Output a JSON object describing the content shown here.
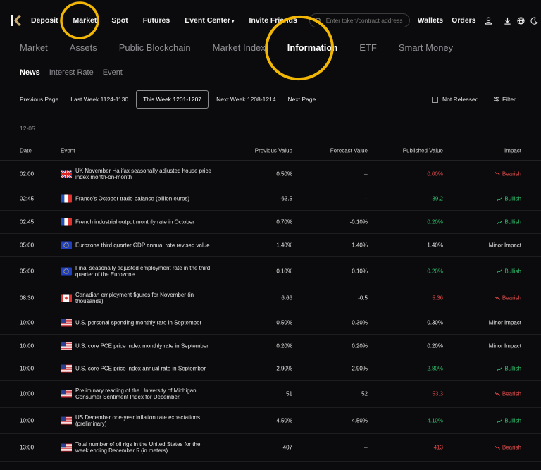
{
  "nav": {
    "items": [
      "Deposit",
      "Market",
      "Spot",
      "Futures",
      "Event Center",
      "Invite Friends"
    ],
    "event_center_caret": "▾",
    "search_placeholder": "Enter token/contract address",
    "right": [
      "Wallets",
      "Orders"
    ]
  },
  "tabs_primary": [
    "Market",
    "Assets",
    "Public Blockchain",
    "Market Index",
    "Information",
    "ETF",
    "Smart Money"
  ],
  "tabs_primary_active": "Information",
  "tabs_secondary": [
    "News",
    "Interest Rate",
    "Event"
  ],
  "tabs_secondary_active": "News",
  "weekbar": {
    "prev_page": "Previous Page",
    "last_week": "Last Week 1124-1130",
    "this_week": "This Week 1201-1207",
    "next_week": "Next Week 1208-1214",
    "next_page": "Next Page",
    "not_released": "Not Released",
    "filter": "Filter"
  },
  "date_header": "12-05",
  "table": {
    "headers": {
      "date": "Date",
      "event": "Event",
      "previous": "Previous Value",
      "forecast": "Forecast Value",
      "published": "Published Value",
      "impact": "Impact"
    },
    "rows": [
      {
        "time": "02:00",
        "flag": "uk",
        "event": "UK November Halifax seasonally adjusted house price index month-on-month",
        "previous": "0.50%",
        "forecast": "--",
        "published": "0.00%",
        "pub_color": "red",
        "impact": "Bearish",
        "impact_type": "bearish"
      },
      {
        "time": "02:45",
        "flag": "fr",
        "event": "France's October trade balance (billion euros)",
        "previous": "-63.5",
        "forecast": "--",
        "published": "-39.2",
        "pub_color": "green",
        "impact": "Bullish",
        "impact_type": "bullish"
      },
      {
        "time": "02:45",
        "flag": "fr",
        "event": "French industrial output monthly rate in October",
        "previous": "0.70%",
        "forecast": "-0.10%",
        "published": "0.20%",
        "pub_color": "green",
        "impact": "Bullish",
        "impact_type": "bullish"
      },
      {
        "time": "05:00",
        "flag": "eu",
        "event": "Eurozone third quarter GDP annual rate revised value",
        "previous": "1.40%",
        "forecast": "1.40%",
        "published": "1.40%",
        "pub_color": "neutral",
        "impact": "Minor Impact",
        "impact_type": "minor"
      },
      {
        "time": "05:00",
        "flag": "eu",
        "event": "Final seasonally adjusted employment rate in the third quarter of the Eurozone",
        "previous": "0.10%",
        "forecast": "0.10%",
        "published": "0.20%",
        "pub_color": "green",
        "impact": "Bullish",
        "impact_type": "bullish"
      },
      {
        "time": "08:30",
        "flag": "ca",
        "event": "Canadian employment figures for November (in thousands)",
        "previous": "6.66",
        "forecast": "-0.5",
        "published": "5.36",
        "pub_color": "red",
        "impact": "Bearish",
        "impact_type": "bearish"
      },
      {
        "time": "10:00",
        "flag": "us",
        "event": "U.S. personal spending monthly rate in September",
        "previous": "0.50%",
        "forecast": "0.30%",
        "published": "0.30%",
        "pub_color": "neutral",
        "impact": "Minor Impact",
        "impact_type": "minor"
      },
      {
        "time": "10:00",
        "flag": "us",
        "event": "U.S. core PCE price index monthly rate in September",
        "previous": "0.20%",
        "forecast": "0.20%",
        "published": "0.20%",
        "pub_color": "neutral",
        "impact": "Minor Impact",
        "impact_type": "minor"
      },
      {
        "time": "10:00",
        "flag": "us",
        "event": "U.S. core PCE price index annual rate in September",
        "previous": "2.90%",
        "forecast": "2.90%",
        "published": "2.80%",
        "pub_color": "green",
        "impact": "Bullish",
        "impact_type": "bullish"
      },
      {
        "time": "10:00",
        "flag": "us",
        "event": "Preliminary reading of the University of Michigan Consumer Sentiment Index for December.",
        "previous": "51",
        "forecast": "52",
        "published": "53.3",
        "pub_color": "red",
        "impact": "Bearish",
        "impact_type": "bearish"
      },
      {
        "time": "10:00",
        "flag": "us",
        "event": "US December one-year inflation rate expectations (preliminary)",
        "previous": "4.50%",
        "forecast": "4.50%",
        "published": "4.10%",
        "pub_color": "green",
        "impact": "Bullish",
        "impact_type": "bullish"
      },
      {
        "time": "13:00",
        "flag": "us",
        "event": "Total number of oil rigs in the United States for the week ending December 5 (in meters)",
        "previous": "407",
        "forecast": "--",
        "published": "413",
        "pub_color": "red",
        "impact": "Bearish",
        "impact_type": "bearish"
      }
    ]
  },
  "colors": {
    "bg": "#0b0b0d",
    "bullish": "#2fbf6b",
    "bearish": "#e04b4b",
    "annotation": "#f2b705"
  }
}
